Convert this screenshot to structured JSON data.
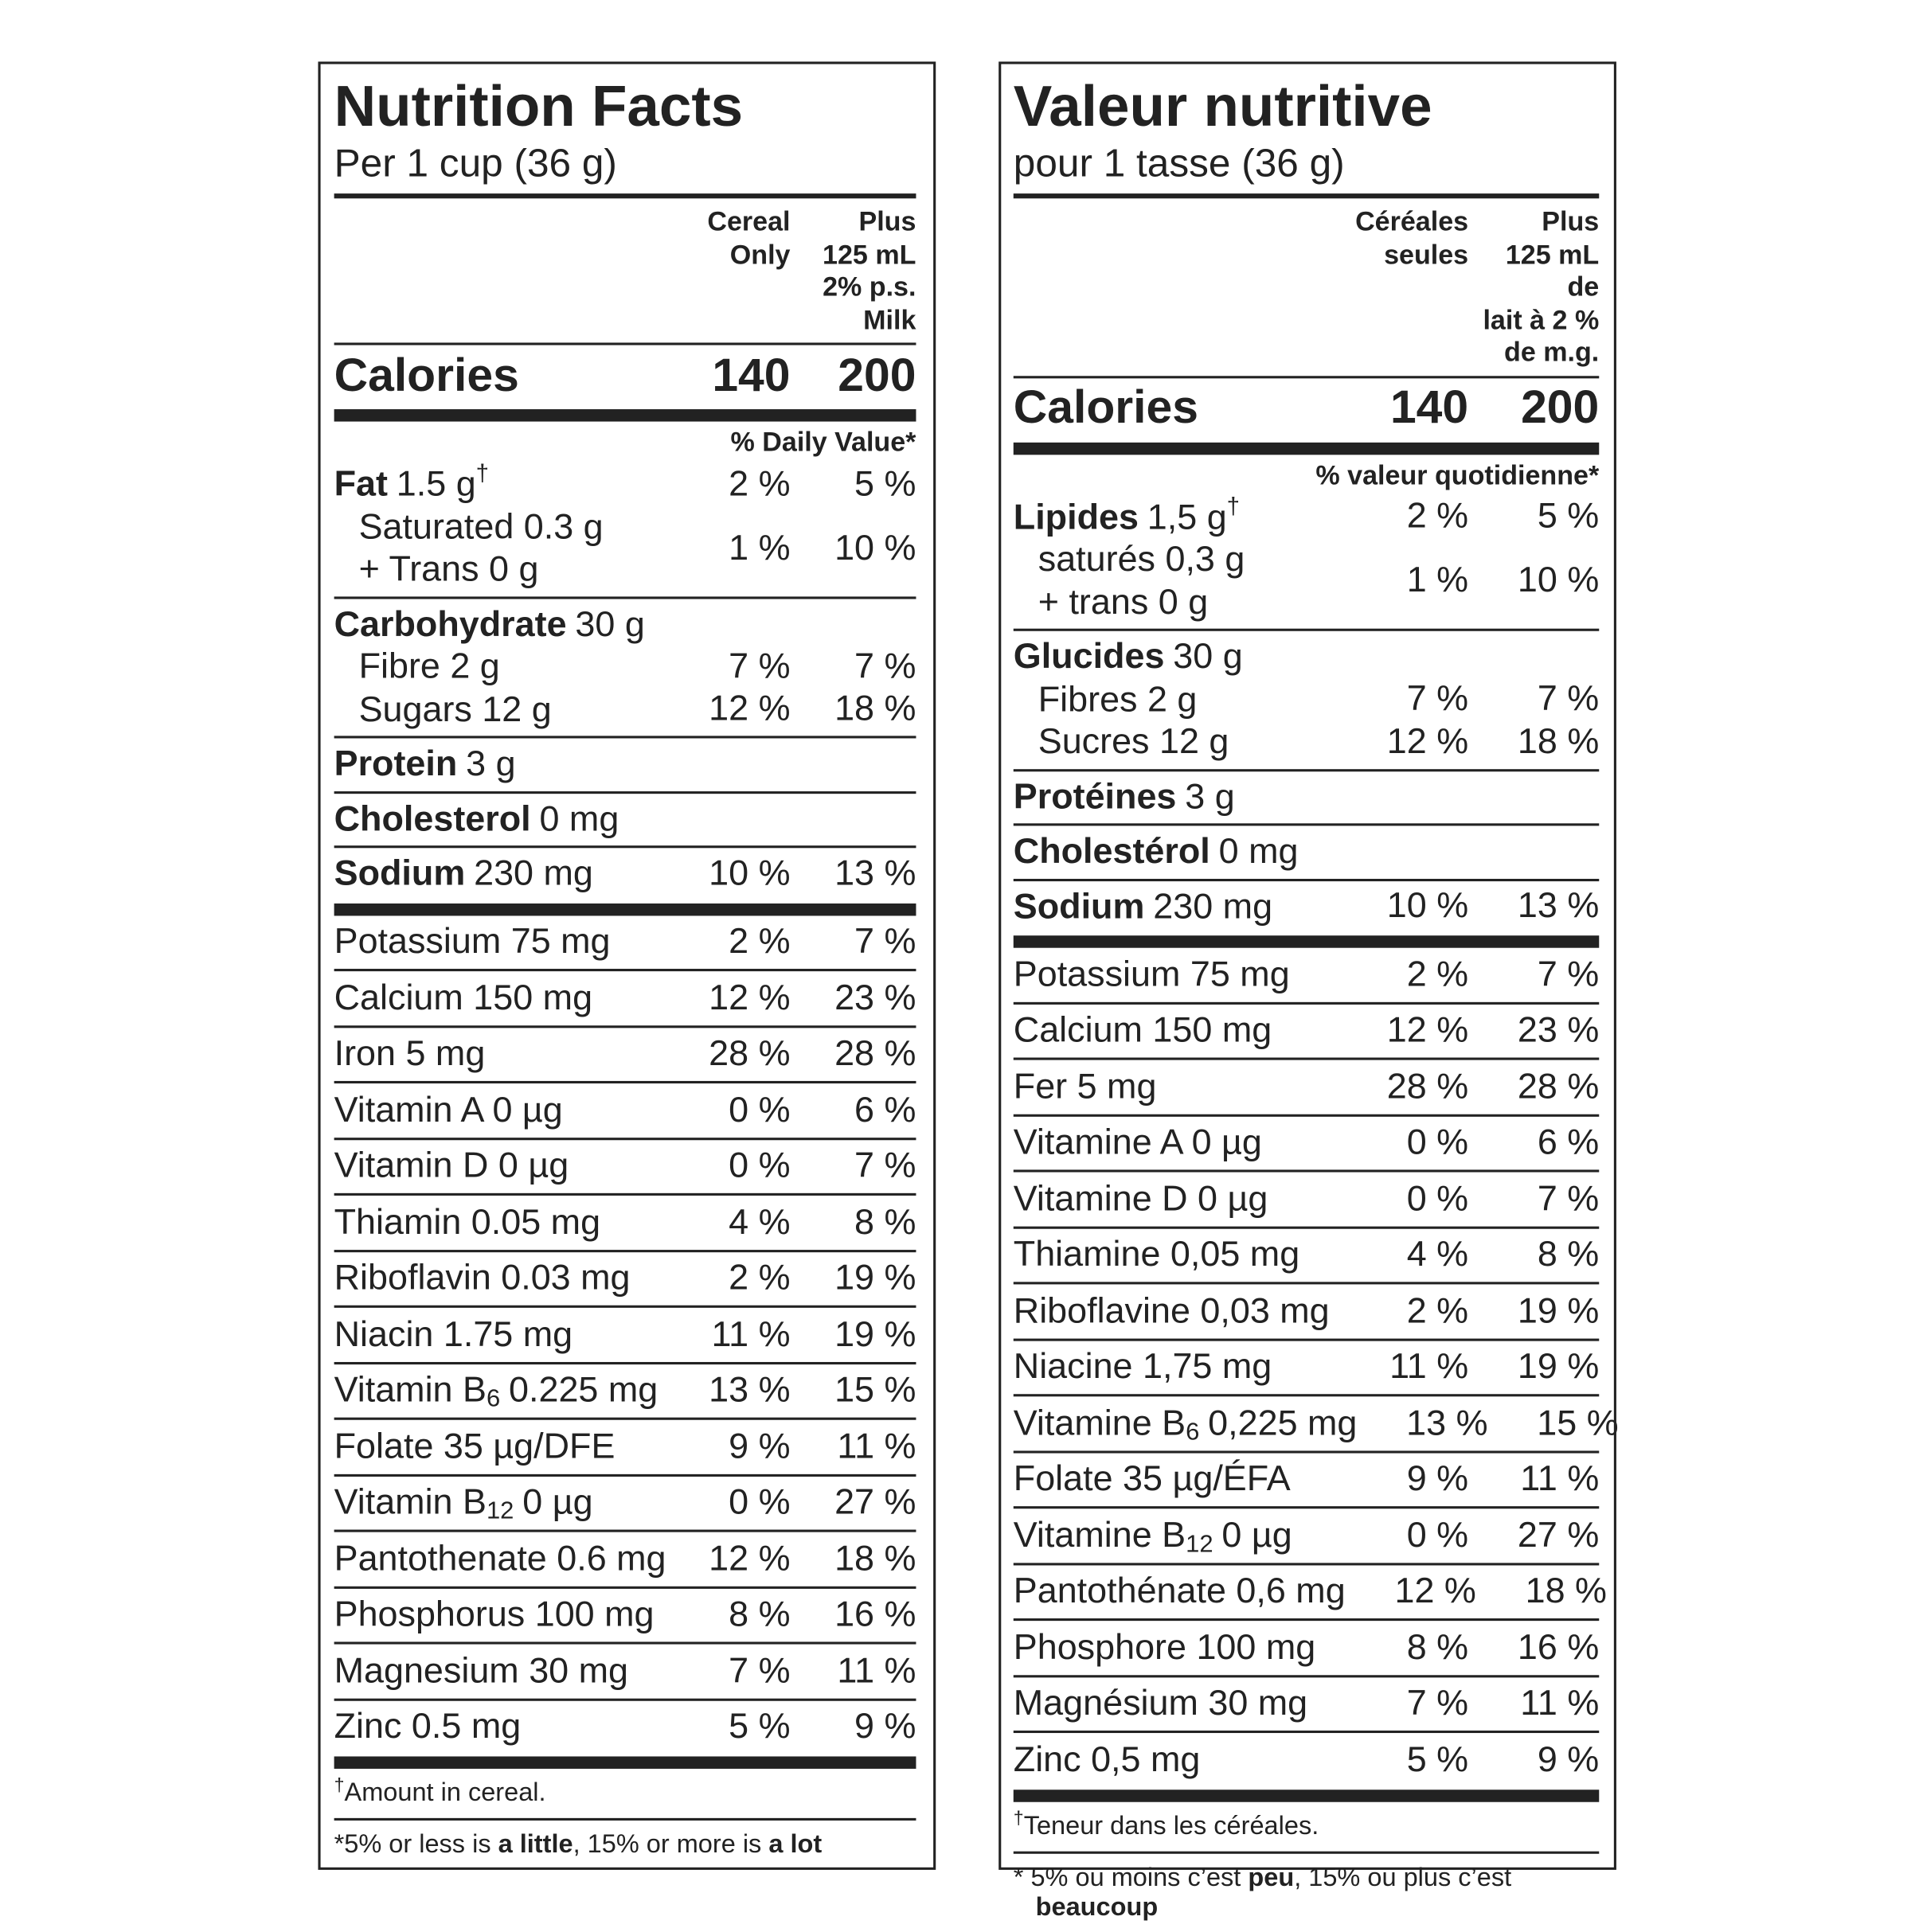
{
  "labels": [
    {
      "title": "Nutrition Facts",
      "serving": "Per 1 cup (36 g)",
      "column_headers": [
        [
          "Cereal",
          "Only"
        ],
        [
          "Plus",
          "125 mL",
          "2% p.s.",
          "Milk"
        ]
      ],
      "calories": {
        "label": "Calories",
        "values": [
          140,
          200
        ]
      },
      "dv_header": "% Daily Value*",
      "nutrient_groups": [
        [
          {
            "name": "Fat",
            "amount": "1.5 g",
            "dagger": "†",
            "dv": [
              "2 %",
              "5 %"
            ]
          },
          {
            "lines": [
              "Saturated 0.3 g",
              "+ Trans 0 g"
            ],
            "indent": true,
            "dv": [
              "1 %",
              "10 %"
            ]
          }
        ],
        [
          {
            "name": "Carbohydrate",
            "amount": "30 g"
          },
          {
            "label": "Fibre 2 g",
            "indent": true,
            "dv": [
              "7 %",
              "7 %"
            ]
          },
          {
            "label": "Sugars 12 g",
            "indent": true,
            "dv": [
              "12 %",
              "18 %"
            ]
          }
        ],
        [
          {
            "name": "Protein",
            "amount": "3 g"
          }
        ],
        [
          {
            "name": "Cholesterol",
            "amount": "0 mg"
          }
        ],
        [
          {
            "name": "Sodium",
            "amount": "230 mg",
            "dv": [
              "10 %",
              "13 %"
            ]
          }
        ]
      ],
      "vitamins_minerals": [
        {
          "label": "Potassium 75 mg",
          "dv": [
            "2 %",
            "7 %"
          ]
        },
        {
          "label": "Calcium 150 mg",
          "dv": [
            "12 %",
            "23 %"
          ]
        },
        {
          "label": "Iron 5 mg",
          "dv": [
            "28 %",
            "28 %"
          ]
        },
        {
          "label": "Vitamin A 0 µg",
          "dv": [
            "0 %",
            "6 %"
          ]
        },
        {
          "label": "Vitamin D 0 µg",
          "dv": [
            "0 %",
            "7 %"
          ]
        },
        {
          "label": "Thiamin 0.05 mg",
          "dv": [
            "4 %",
            "8 %"
          ]
        },
        {
          "label": "Riboflavin 0.03 mg",
          "dv": [
            "2 %",
            "19 %"
          ]
        },
        {
          "label": "Niacin 1.75 mg",
          "dv": [
            "11 %",
            "19 %"
          ]
        },
        {
          "label": "Vitamin B",
          "subscript": "6",
          "amount": "0.225 mg",
          "dv": [
            "13 %",
            "15 %"
          ]
        },
        {
          "label": "Folate 35 µg/DFE",
          "dv": [
            "9 %",
            "11 %"
          ]
        },
        {
          "label": "Vitamin B",
          "subscript": "12",
          "amount": "0 µg",
          "dv": [
            "0 %",
            "27 %"
          ]
        },
        {
          "label": "Pantothenate 0.6 mg",
          "dv": [
            "12 %",
            "18 %"
          ]
        },
        {
          "label": "Phosphorus 100 mg",
          "dv": [
            "8 %",
            "16 %"
          ]
        },
        {
          "label": "Magnesium 30 mg",
          "dv": [
            "7 %",
            "11 %"
          ]
        },
        {
          "label": "Zinc 0.5 mg",
          "dv": [
            "5 %",
            "9 %"
          ]
        }
      ],
      "footnotes": [
        {
          "dagger": "†",
          "text": "Amount in cereal."
        },
        {
          "parts": [
            "*5% or less is ",
            "a little",
            ", 15% or more is ",
            "a lot"
          ]
        }
      ]
    },
    {
      "title": "Valeur nutritive",
      "serving": "pour 1 tasse (36 g)",
      "column_headers": [
        [
          "Céréales",
          "seules"
        ],
        [
          "Plus",
          "125 mL de",
          "lait à 2 %",
          "de m.g."
        ]
      ],
      "calories": {
        "label": "Calories",
        "values": [
          140,
          200
        ]
      },
      "dv_header": "% valeur quotidienne*",
      "nutrient_groups": [
        [
          {
            "name": "Lipides",
            "amount": "1,5 g",
            "dagger": "†",
            "dv": [
              "2 %",
              "5 %"
            ]
          },
          {
            "lines": [
              "saturés 0,3 g",
              "+ trans 0 g"
            ],
            "indent": true,
            "dv": [
              "1 %",
              "10 %"
            ]
          }
        ],
        [
          {
            "name": "Glucides",
            "amount": "30 g"
          },
          {
            "label": "Fibres 2 g",
            "indent": true,
            "dv": [
              "7 %",
              "7 %"
            ]
          },
          {
            "label": "Sucres 12 g",
            "indent": true,
            "dv": [
              "12 %",
              "18 %"
            ]
          }
        ],
        [
          {
            "name": "Protéines",
            "amount": "3 g"
          }
        ],
        [
          {
            "name": "Cholestérol",
            "amount": "0 mg"
          }
        ],
        [
          {
            "name": "Sodium",
            "amount": "230 mg",
            "dv": [
              "10 %",
              "13 %"
            ]
          }
        ]
      ],
      "vitamins_minerals": [
        {
          "label": "Potassium 75 mg",
          "dv": [
            "2 %",
            "7 %"
          ]
        },
        {
          "label": "Calcium 150 mg",
          "dv": [
            "12 %",
            "23 %"
          ]
        },
        {
          "label": "Fer 5 mg",
          "dv": [
            "28 %",
            "28 %"
          ]
        },
        {
          "label": "Vitamine A 0 µg",
          "dv": [
            "0 %",
            "6 %"
          ]
        },
        {
          "label": "Vitamine D 0 µg",
          "dv": [
            "0 %",
            "7 %"
          ]
        },
        {
          "label": "Thiamine 0,05 mg",
          "dv": [
            "4 %",
            "8 %"
          ]
        },
        {
          "label": "Riboflavine 0,03 mg",
          "dv": [
            "2 %",
            "19 %"
          ]
        },
        {
          "label": "Niacine 1,75 mg",
          "dv": [
            "11 %",
            "19 %"
          ]
        },
        {
          "label": "Vitamine B",
          "subscript": "6",
          "amount": "0,225 mg",
          "dv": [
            "13 %",
            "15 %"
          ]
        },
        {
          "label": "Folate 35 µg/ÉFA",
          "dv": [
            "9 %",
            "11 %"
          ]
        },
        {
          "label": "Vitamine B",
          "subscript": "12",
          "amount": "0 µg",
          "dv": [
            "0 %",
            "27 %"
          ]
        },
        {
          "label": "Pantothénate 0,6 mg",
          "dv": [
            "12 %",
            "18 %"
          ]
        },
        {
          "label": "Phosphore 100 mg",
          "dv": [
            "8 %",
            "16 %"
          ]
        },
        {
          "label": "Magnésium 30 mg",
          "dv": [
            "7 %",
            "11 %"
          ]
        },
        {
          "label": "Zinc 0,5 mg",
          "dv": [
            "5 %",
            "9 %"
          ]
        }
      ],
      "footnotes": [
        {
          "dagger": "†",
          "text": "Teneur dans les céréales."
        },
        {
          "parts": [
            "* 5% ou moins c’est ",
            "peu",
            ", 15% ou plus c’est ",
            "beaucoup"
          ]
        }
      ]
    }
  ]
}
